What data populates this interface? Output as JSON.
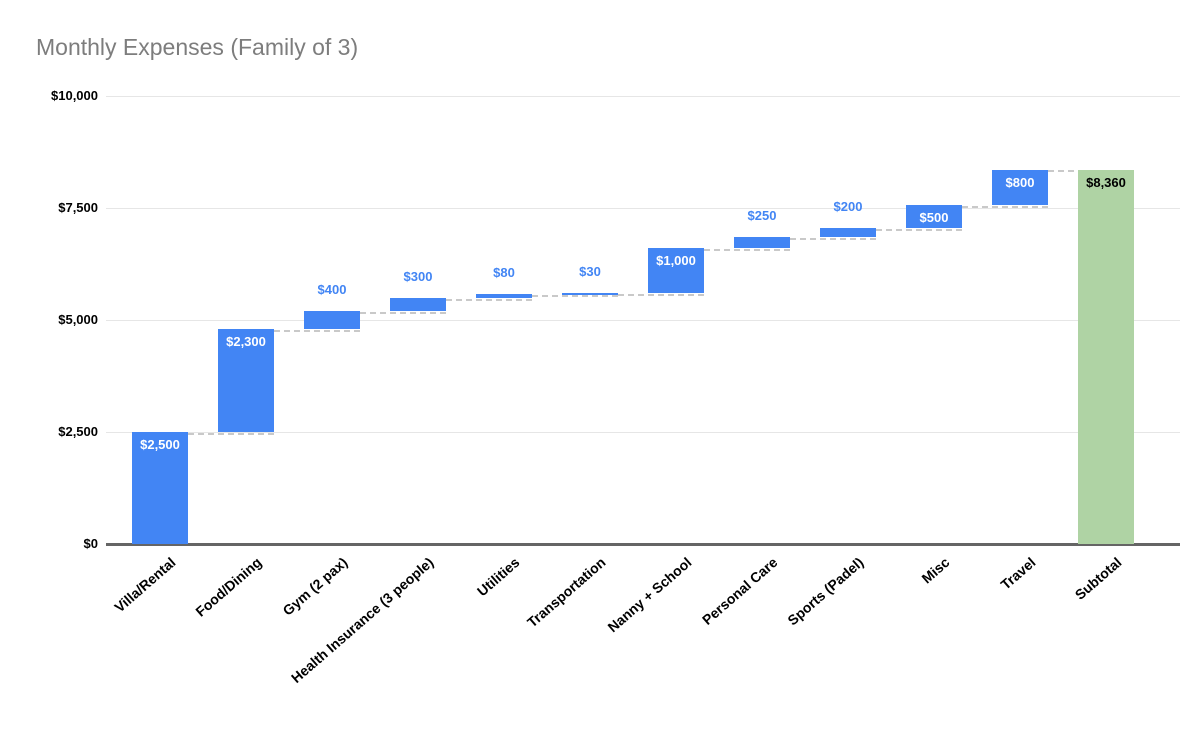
{
  "colors": {
    "bar": "#4285F4",
    "subtotal_bar": "#AFD3A4",
    "label_inside": "#FFFFFF",
    "label_outside": "#4285F4",
    "label_subtotal": "#000000",
    "title_text": "#7D7D7D",
    "axis_text": "#000000",
    "gridline": "#E6E6E6",
    "axis_line": "#656565",
    "connector": "#C9C9C9",
    "background": "#FFFFFF"
  },
  "chart_data": {
    "type": "bar",
    "subtype": "waterfall",
    "title": "Monthly Expenses (Family of 3)",
    "xlabel": "",
    "ylabel": "",
    "ylim": [
      0,
      10000
    ],
    "grid": "horizontal",
    "legend": "none",
    "y_ticks": [
      {
        "value": 0,
        "label": "$0"
      },
      {
        "value": 2500,
        "label": "$2,500"
      },
      {
        "value": 5000,
        "label": "$5,000"
      },
      {
        "value": 7500,
        "label": "$7,500"
      },
      {
        "value": 10000,
        "label": "$10,000"
      }
    ],
    "bars": [
      {
        "category": "Villa/Rental",
        "value": 2500,
        "start": 0,
        "end": 2500,
        "label": "$2,500",
        "label_position": "inside",
        "role": "delta"
      },
      {
        "category": "Food/Dining",
        "value": 2300,
        "start": 2500,
        "end": 4800,
        "label": "$2,300",
        "label_position": "inside",
        "role": "delta"
      },
      {
        "category": "Gym (2 pax)",
        "value": 400,
        "start": 4800,
        "end": 5200,
        "label": "$400",
        "label_position": "above",
        "role": "delta"
      },
      {
        "category": "Health Insurance (3 people)",
        "value": 300,
        "start": 5200,
        "end": 5500,
        "label": "$300",
        "label_position": "above",
        "role": "delta"
      },
      {
        "category": "Utilities",
        "value": 80,
        "start": 5500,
        "end": 5580,
        "label": "$80",
        "label_position": "above",
        "role": "delta"
      },
      {
        "category": "Transportation",
        "value": 30,
        "start": 5580,
        "end": 5610,
        "label": "$30",
        "label_position": "above",
        "role": "delta"
      },
      {
        "category": "Nanny + School",
        "value": 1000,
        "start": 5610,
        "end": 6610,
        "label": "$1,000",
        "label_position": "inside",
        "role": "delta"
      },
      {
        "category": "Personal Care",
        "value": 250,
        "start": 6610,
        "end": 6860,
        "label": "$250",
        "label_position": "above",
        "role": "delta"
      },
      {
        "category": "Sports (Padel)",
        "value": 200,
        "start": 6860,
        "end": 7060,
        "label": "$200",
        "label_position": "above",
        "role": "delta"
      },
      {
        "category": "Misc",
        "value": 500,
        "start": 7060,
        "end": 7560,
        "label": "$500",
        "label_position": "inside",
        "role": "delta"
      },
      {
        "category": "Travel",
        "value": 800,
        "start": 7560,
        "end": 8360,
        "label": "$800",
        "label_position": "inside",
        "role": "delta"
      },
      {
        "category": "Subtotal",
        "value": 8360,
        "start": 0,
        "end": 8360,
        "label": "$8,360",
        "label_position": "inside",
        "role": "subtotal"
      }
    ]
  }
}
